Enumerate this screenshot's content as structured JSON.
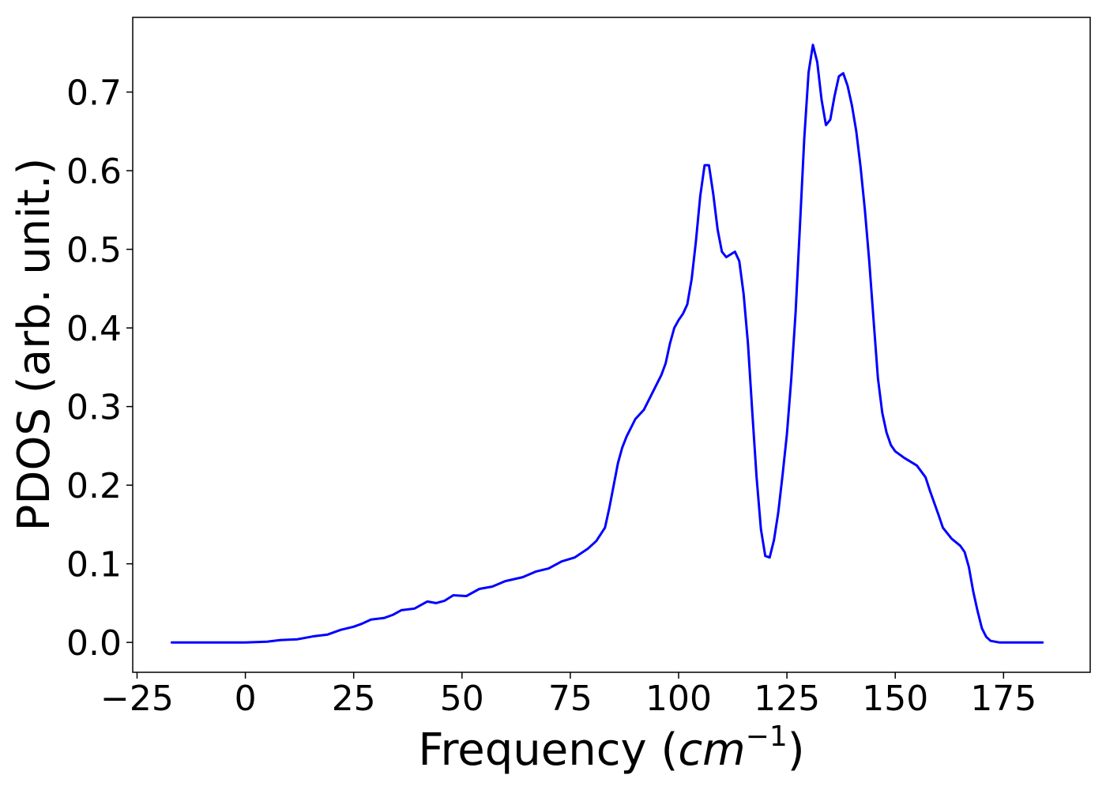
{
  "chart_data": {
    "type": "line",
    "title": "",
    "xlabel": "Frequency (",
    "xlabel_math": "cm",
    "xlabel_sup": "−1",
    "xlabel_close": ")",
    "ylabel": "PDOS (arb. unit.)",
    "xlim": [
      -26,
      195
    ],
    "ylim": [
      -0.038,
      0.795
    ],
    "xticks": [
      -25,
      0,
      25,
      50,
      75,
      100,
      125,
      150,
      175
    ],
    "xtick_labels": [
      "−25",
      "0",
      "25",
      "50",
      "75",
      "100",
      "125",
      "150",
      "175"
    ],
    "yticks": [
      0.0,
      0.1,
      0.2,
      0.3,
      0.4,
      0.5,
      0.6,
      0.7
    ],
    "ytick_labels": [
      "0.0",
      "0.1",
      "0.2",
      "0.3",
      "0.4",
      "0.5",
      "0.6",
      "0.7"
    ],
    "grid": false,
    "legend": "none",
    "series": [
      {
        "color": "#0000ff",
        "points": [
          [
            -17,
            0.0
          ],
          [
            0,
            0.0
          ],
          [
            5,
            0.001
          ],
          [
            8,
            0.003
          ],
          [
            12,
            0.004
          ],
          [
            16,
            0.008
          ],
          [
            19,
            0.01
          ],
          [
            22,
            0.016
          ],
          [
            25,
            0.02
          ],
          [
            27,
            0.024
          ],
          [
            29,
            0.029
          ],
          [
            32,
            0.031
          ],
          [
            34,
            0.035
          ],
          [
            36,
            0.041
          ],
          [
            39,
            0.043
          ],
          [
            42,
            0.052
          ],
          [
            44,
            0.05
          ],
          [
            46,
            0.053
          ],
          [
            48,
            0.06
          ],
          [
            51,
            0.059
          ],
          [
            54,
            0.068
          ],
          [
            57,
            0.071
          ],
          [
            60,
            0.078
          ],
          [
            64,
            0.083
          ],
          [
            67,
            0.09
          ],
          [
            70,
            0.094
          ],
          [
            73,
            0.103
          ],
          [
            76,
            0.108
          ],
          [
            79,
            0.119
          ],
          [
            81,
            0.129
          ],
          [
            83,
            0.146
          ],
          [
            84,
            0.171
          ],
          [
            86,
            0.228
          ],
          [
            87,
            0.248
          ],
          [
            88,
            0.262
          ],
          [
            90,
            0.284
          ],
          [
            92,
            0.296
          ],
          [
            94,
            0.318
          ],
          [
            96,
            0.34
          ],
          [
            97,
            0.355
          ],
          [
            98,
            0.38
          ],
          [
            99,
            0.4
          ],
          [
            100,
            0.41
          ],
          [
            101,
            0.418
          ],
          [
            102,
            0.43
          ],
          [
            103,
            0.462
          ],
          [
            104,
            0.51
          ],
          [
            105,
            0.568
          ],
          [
            106,
            0.607
          ],
          [
            107,
            0.607
          ],
          [
            108,
            0.57
          ],
          [
            109,
            0.525
          ],
          [
            110,
            0.497
          ],
          [
            111,
            0.49
          ],
          [
            113,
            0.497
          ],
          [
            114,
            0.485
          ],
          [
            115,
            0.443
          ],
          [
            116,
            0.38
          ],
          [
            117,
            0.294
          ],
          [
            118,
            0.21
          ],
          [
            119,
            0.144
          ],
          [
            120,
            0.11
          ],
          [
            121,
            0.108
          ],
          [
            122,
            0.13
          ],
          [
            123,
            0.165
          ],
          [
            124,
            0.213
          ],
          [
            125,
            0.265
          ],
          [
            126,
            0.335
          ],
          [
            127,
            0.42
          ],
          [
            128,
            0.53
          ],
          [
            129,
            0.64
          ],
          [
            130,
            0.725
          ],
          [
            131,
            0.76
          ],
          [
            132,
            0.738
          ],
          [
            133,
            0.69
          ],
          [
            134,
            0.658
          ],
          [
            135,
            0.665
          ],
          [
            136,
            0.695
          ],
          [
            137,
            0.72
          ],
          [
            138,
            0.724
          ],
          [
            139,
            0.708
          ],
          [
            140,
            0.683
          ],
          [
            141,
            0.65
          ],
          [
            142,
            0.605
          ],
          [
            143,
            0.55
          ],
          [
            144,
            0.485
          ],
          [
            145,
            0.41
          ],
          [
            146,
            0.336
          ],
          [
            147,
            0.292
          ],
          [
            148,
            0.267
          ],
          [
            149,
            0.251
          ],
          [
            150,
            0.243
          ],
          [
            152,
            0.235
          ],
          [
            155,
            0.225
          ],
          [
            157,
            0.21
          ],
          [
            158,
            0.193
          ],
          [
            160,
            0.162
          ],
          [
            161,
            0.146
          ],
          [
            163,
            0.132
          ],
          [
            165,
            0.123
          ],
          [
            166,
            0.115
          ],
          [
            167,
            0.096
          ],
          [
            168,
            0.065
          ],
          [
            169,
            0.04
          ],
          [
            170,
            0.018
          ],
          [
            171,
            0.007
          ],
          [
            172,
            0.002
          ],
          [
            174,
            0.0
          ],
          [
            184,
            0.0
          ]
        ]
      }
    ]
  }
}
